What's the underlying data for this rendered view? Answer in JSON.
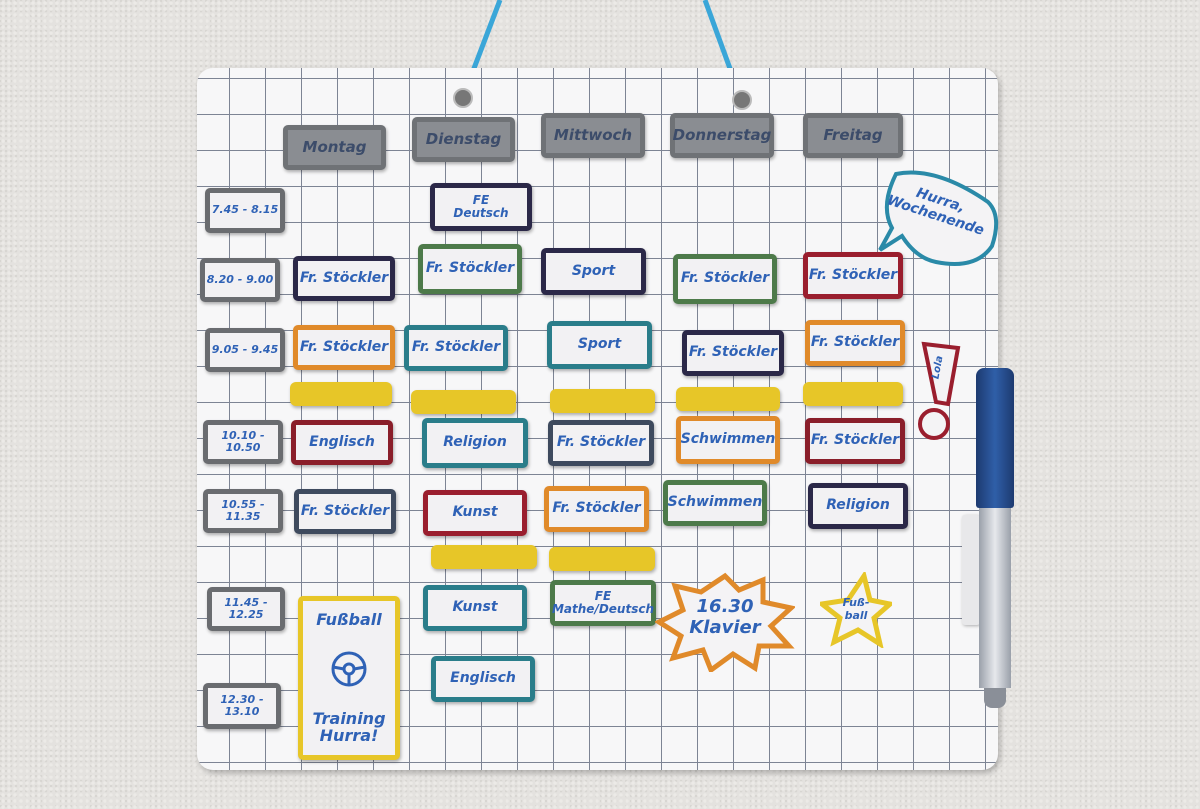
{
  "days": [
    "Montag",
    "Dienstag",
    "Mittwoch",
    "Donnerstag",
    "Freitag"
  ],
  "times": [
    "7.45 - 8.15",
    "8.20 - 9.00",
    "9.05 - 9.45",
    "10.10 - 10.50",
    "10.55 - 11.35",
    "11.45 - 12.25",
    "12.30 - 13.10"
  ],
  "colors": {
    "text": "#2f62b6",
    "navy": "#2b2848",
    "orange": "#e08a2a",
    "darkred": "#8a1e2a",
    "red": "#9a1e2e",
    "green": "#4d7a4a",
    "teal": "#2a7d8a",
    "slate": "#3e4a5e",
    "yellow": "#e7c628",
    "cord": "#3aa6d8"
  },
  "magnets": [
    {
      "text": "FE\nDeutsch",
      "color": "navy"
    },
    {
      "text": "Fr. Stöckler",
      "color": "navy"
    },
    {
      "text": "Fr. Stöckler",
      "color": "orange"
    },
    {
      "text": "",
      "color": "yellow"
    },
    {
      "text": "Englisch",
      "color": "darkred"
    },
    {
      "text": "Fr. Stöckler",
      "color": "slate"
    },
    {
      "text": "Fr. Stöckler",
      "color": "green"
    },
    {
      "text": "Fr. Stöckler",
      "color": "teal"
    },
    {
      "text": "",
      "color": "yellow"
    },
    {
      "text": "Religion",
      "color": "teal"
    },
    {
      "text": "Kunst",
      "color": "red"
    },
    {
      "text": "",
      "color": "yellow"
    },
    {
      "text": "Kunst",
      "color": "teal"
    },
    {
      "text": "Englisch",
      "color": "teal"
    },
    {
      "text": "Sport",
      "color": "navy"
    },
    {
      "text": "Sport",
      "color": "teal"
    },
    {
      "text": "",
      "color": "yellow"
    },
    {
      "text": "Fr. Stöckler",
      "color": "slate"
    },
    {
      "text": "Fr. Stöckler",
      "color": "orange"
    },
    {
      "text": "",
      "color": "yellow"
    },
    {
      "text": "FE\nMathe/Deutsch",
      "color": "green"
    },
    {
      "text": "Fr. Stöckler",
      "color": "green"
    },
    {
      "text": "Fr. Stöckler",
      "color": "navy"
    },
    {
      "text": "",
      "color": "yellow"
    },
    {
      "text": "Schwimmen",
      "color": "orange"
    },
    {
      "text": "Schwimmen",
      "color": "green"
    },
    {
      "text": "Fr. Stöckler",
      "color": "red"
    },
    {
      "text": "Fr. Stöckler",
      "color": "orange"
    },
    {
      "text": "",
      "color": "yellow"
    },
    {
      "text": "Fr. Stöckler",
      "color": "darkred"
    },
    {
      "text": "Religion",
      "color": "navy"
    }
  ],
  "fussball_card": {
    "top": "Fußball",
    "bottom": "Training\nHurra!"
  },
  "klavier": "16.30\nKlavier",
  "star": "Fuß-\nball",
  "bubble": "Hurra,\nWochenende",
  "lola": "Lola"
}
